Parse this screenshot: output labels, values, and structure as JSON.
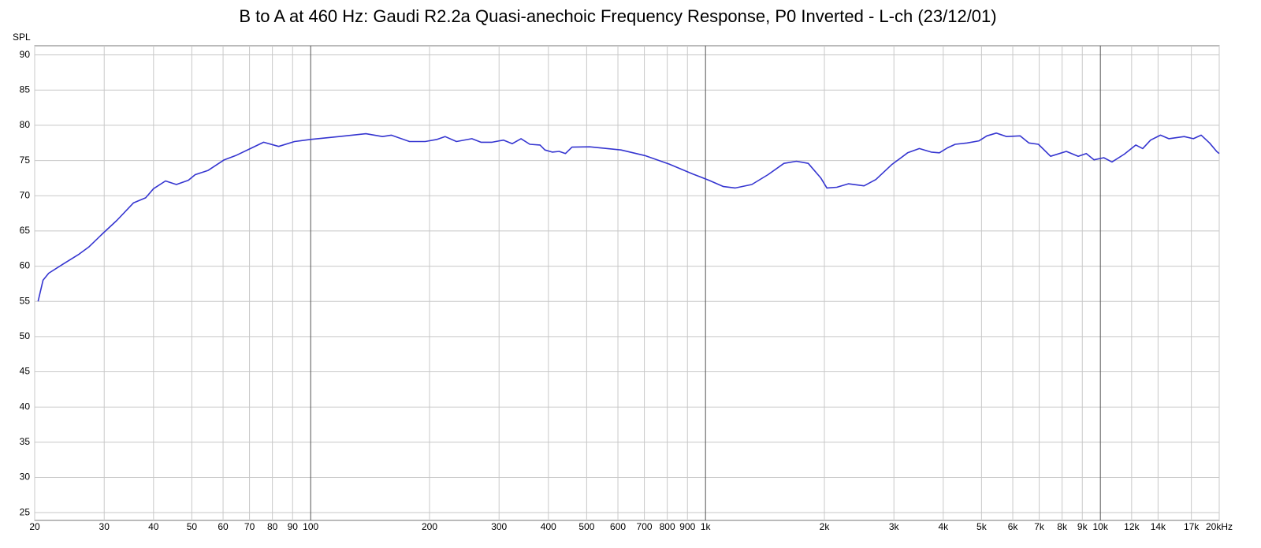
{
  "chart_data": {
    "type": "line",
    "title": "B to A at 460 Hz: Gaudi R2.2a Quasi-anechoic Frequency Response, P0 Inverted - L-ch (23/12/01)",
    "y_label": "SPL",
    "log_x": true,
    "grid": true,
    "xlim": [
      20,
      20000
    ],
    "ylim": [
      23.9,
      91.3
    ],
    "xticks": [
      20,
      30,
      40,
      50,
      60,
      70,
      80,
      90,
      100,
      200,
      300,
      400,
      500,
      600,
      700,
      800,
      900,
      {
        "value": 1000,
        "label": "1k"
      },
      {
        "value": 2000,
        "label": "2k"
      },
      {
        "value": 3000,
        "label": "3k"
      },
      {
        "value": 4000,
        "label": "4k"
      },
      {
        "value": 5000,
        "label": "5k"
      },
      {
        "value": 6000,
        "label": "6k"
      },
      {
        "value": 7000,
        "label": "7k"
      },
      {
        "value": 8000,
        "label": "8k"
      },
      {
        "value": 9000,
        "label": "9k"
      },
      {
        "value": 10000,
        "label": "10k"
      },
      {
        "value": 12000,
        "label": "12k"
      },
      {
        "value": 14000,
        "label": "14k"
      },
      {
        "value": 17000,
        "label": "17k"
      },
      {
        "value": 20000,
        "label": "20kHz"
      }
    ],
    "yticks": [
      25,
      30,
      35,
      40,
      45,
      50,
      55,
      60,
      65,
      70,
      75,
      80,
      85,
      90
    ],
    "series": [
      {
        "color": "#3535d0",
        "x": [
          20.4,
          21,
          21.7,
          23.6,
          25.9,
          27.4,
          29.7,
          32.3,
          35.6,
          38.2,
          40,
          42.9,
          45.7,
          49,
          51,
          55,
          60.4,
          64.6,
          70.4,
          76,
          83,
          91,
          100,
          118,
          138,
          152,
          160,
          178,
          195,
          209,
          219,
          234,
          256,
          270,
          288,
          308,
          324,
          341,
          359,
          381,
          392,
          409,
          426,
          442,
          459,
          509,
          611,
          702,
          809,
          928,
          1020,
          1110,
          1190,
          1310,
          1440,
          1580,
          1700,
          1820,
          1960,
          2030,
          2150,
          2300,
          2520,
          2700,
          2960,
          3250,
          3480,
          3730,
          3910,
          4100,
          4290,
          4600,
          4930,
          5160,
          5450,
          5790,
          6260,
          6590,
          6970,
          7480,
          8200,
          8790,
          9210,
          9640,
          10200,
          10700,
          11500,
          12300,
          12800,
          13400,
          14200,
          14900,
          16300,
          17200,
          18000,
          18900,
          19700,
          20000
        ],
        "values": [
          55,
          58,
          59,
          60.3,
          61.7,
          62.7,
          64.6,
          66.5,
          69,
          69.7,
          71,
          72.1,
          71.6,
          72.2,
          73,
          73.6,
          75.1,
          75.7,
          76.7,
          77.6,
          77,
          77.7,
          78,
          78.4,
          78.8,
          78.4,
          78.6,
          77.7,
          77.7,
          78,
          78.4,
          77.7,
          78.1,
          77.6,
          77.6,
          77.9,
          77.4,
          78.1,
          77.3,
          77.2,
          76.5,
          76.2,
          76.3,
          76,
          76.9,
          76.95,
          76.5,
          75.7,
          74.5,
          73.1,
          72.2,
          71.3,
          71.1,
          71.6,
          73,
          74.6,
          74.9,
          74.6,
          72.5,
          71.1,
          71.2,
          71.7,
          71.4,
          72.3,
          74.4,
          76.1,
          76.7,
          76.2,
          76.1,
          76.8,
          77.3,
          77.5,
          77.8,
          78.5,
          78.9,
          78.4,
          78.5,
          77.5,
          77.3,
          75.6,
          76.3,
          75.6,
          76,
          75.1,
          75.4,
          74.8,
          75.9,
          77.2,
          76.7,
          77.9,
          78.6,
          78.1,
          78.4,
          78.1,
          78.6,
          77.5,
          76.3,
          76
        ]
      }
    ]
  }
}
